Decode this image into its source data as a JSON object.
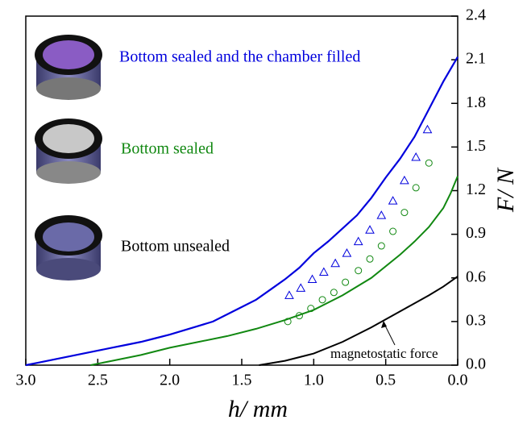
{
  "chart_data": {
    "type": "line",
    "xlabel": "h/ mm",
    "ylabel": "F/ N",
    "xlim": [
      3.0,
      0.0
    ],
    "ylim": [
      0.0,
      2.4
    ],
    "xticks": [
      {
        "value": 3.0,
        "label": "3.0"
      },
      {
        "value": 2.5,
        "label": "2.5"
      },
      {
        "value": 2.0,
        "label": "2.0"
      },
      {
        "value": 1.5,
        "label": "1.5"
      },
      {
        "value": 1.0,
        "label": "1.0"
      },
      {
        "value": 0.5,
        "label": "0.5"
      },
      {
        "value": 0.0,
        "label": "0.0"
      }
    ],
    "yticks": [
      {
        "value": 0.0,
        "label": "0.0"
      },
      {
        "value": 0.3,
        "label": "0.3"
      },
      {
        "value": 0.6,
        "label": "0.6"
      },
      {
        "value": 0.9,
        "label": "0.9"
      },
      {
        "value": 1.2,
        "label": "1.2"
      },
      {
        "value": 1.5,
        "label": "1.5"
      },
      {
        "value": 1.8,
        "label": "1.8"
      },
      {
        "value": 2.1,
        "label": "2.1"
      },
      {
        "value": 2.4,
        "label": "2.4"
      }
    ],
    "annotation": "magnetostatic force",
    "series": [
      {
        "name": "Bottom sealed and the chamber filled",
        "color": "#0000dd",
        "kind": "line",
        "x": [
          3.0,
          2.9,
          2.8,
          2.7,
          2.6,
          2.5,
          2.4,
          2.3,
          2.2,
          2.1,
          2.0,
          1.9,
          1.8,
          1.7,
          1.6,
          1.5,
          1.4,
          1.3,
          1.2,
          1.1,
          1.0,
          0.9,
          0.8,
          0.7,
          0.6,
          0.5,
          0.4,
          0.3,
          0.2,
          0.1,
          0.0
        ],
        "values": [
          0,
          0.02,
          0.04,
          0.06,
          0.08,
          0.1,
          0.12,
          0.14,
          0.16,
          0.185,
          0.21,
          0.24,
          0.27,
          0.3,
          0.35,
          0.4,
          0.45,
          0.52,
          0.59,
          0.67,
          0.77,
          0.85,
          0.94,
          1.03,
          1.15,
          1.29,
          1.42,
          1.57,
          1.76,
          1.95,
          2.12
        ]
      },
      {
        "name": "Bottom sealed",
        "color": "#118811",
        "kind": "line",
        "x": [
          2.55,
          2.4,
          2.2,
          2.0,
          1.8,
          1.6,
          1.4,
          1.2,
          1.0,
          0.8,
          0.6,
          0.4,
          0.3,
          0.2,
          0.1,
          0.05,
          0.0
        ],
        "values": [
          0,
          0.03,
          0.07,
          0.12,
          0.16,
          0.2,
          0.25,
          0.31,
          0.38,
          0.48,
          0.6,
          0.76,
          0.85,
          0.95,
          1.08,
          1.18,
          1.3
        ]
      },
      {
        "name": "Bottom unsealed",
        "color": "#000000",
        "kind": "line",
        "x": [
          1.38,
          1.2,
          1.0,
          0.8,
          0.6,
          0.4,
          0.2,
          0.1,
          0.0
        ],
        "values": [
          0,
          0.03,
          0.08,
          0.16,
          0.26,
          0.37,
          0.48,
          0.54,
          0.61
        ]
      },
      {
        "color": "#0000dd",
        "kind": "triangle",
        "x": [
          1.17,
          1.09,
          1.01,
          0.93,
          0.85,
          0.77,
          0.69,
          0.61,
          0.53,
          0.45,
          0.37,
          0.29,
          0.21
        ],
        "values": [
          0.48,
          0.53,
          0.59,
          0.64,
          0.7,
          0.77,
          0.85,
          0.93,
          1.03,
          1.13,
          1.27,
          1.43,
          1.62
        ]
      },
      {
        "color": "#118811",
        "kind": "circle",
        "x": [
          1.18,
          1.1,
          1.02,
          0.94,
          0.86,
          0.78,
          0.69,
          0.61,
          0.53,
          0.45,
          0.37,
          0.29,
          0.2
        ],
        "values": [
          0.3,
          0.34,
          0.39,
          0.45,
          0.5,
          0.57,
          0.65,
          0.73,
          0.82,
          0.92,
          1.05,
          1.22,
          1.39
        ]
      }
    ]
  }
}
